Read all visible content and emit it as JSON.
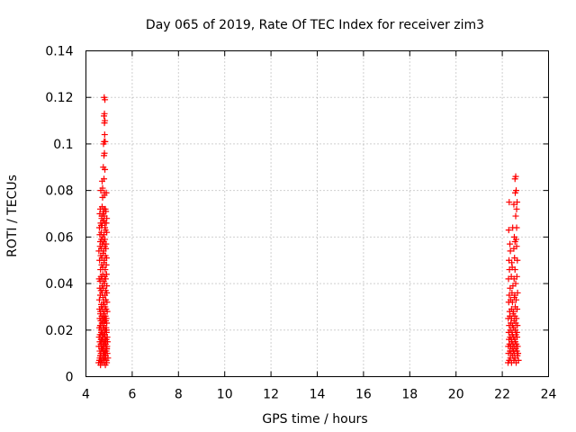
{
  "chart_data": {
    "type": "scatter",
    "title": "Day 065 of 2019, Rate Of TEC Index for receiver zim3",
    "xlabel": "GPS time / hours",
    "ylabel": "ROTI / TECUs",
    "xlim": [
      4,
      24
    ],
    "ylim": [
      0,
      0.14
    ],
    "xticks": [
      "4",
      "6",
      "8",
      "10",
      "12",
      "14",
      "16",
      "18",
      "20",
      "22",
      "24"
    ],
    "yticks": [
      "0",
      "0.02",
      "0.04",
      "0.06",
      "0.08",
      "0.1",
      "0.12",
      "0.14"
    ],
    "grid": true,
    "marker": "plus",
    "color": "#ff0000",
    "series": [
      {
        "x": [
          4.55,
          4.58,
          4.6,
          4.62,
          4.63,
          4.65,
          4.66,
          4.68,
          4.7,
          4.72,
          4.74,
          4.75,
          4.77,
          4.78,
          4.8,
          4.82,
          4.84,
          4.85,
          4.87,
          4.88,
          4.9,
          4.92,
          4.95,
          4.56,
          4.6,
          4.64,
          4.68,
          4.71,
          4.75,
          4.79,
          4.83,
          4.86,
          4.9,
          4.93,
          4.57,
          4.61,
          4.65,
          4.69,
          4.73,
          4.77,
          4.81,
          4.85,
          4.89,
          4.92,
          4.58,
          4.62,
          4.66,
          4.7,
          4.74,
          4.78,
          4.82,
          4.86,
          4.9,
          4.6,
          4.64,
          4.68,
          4.72,
          4.76,
          4.8,
          4.84,
          4.88,
          4.92,
          4.59,
          4.63,
          4.67,
          4.71,
          4.75,
          4.79,
          4.83,
          4.87,
          4.91,
          4.62,
          4.66,
          4.7,
          4.74,
          4.78,
          4.82,
          4.86,
          4.9,
          4.64,
          4.68,
          4.72,
          4.76,
          4.8,
          4.84,
          4.88,
          4.63,
          4.67,
          4.71,
          4.75,
          4.79,
          4.83,
          4.87,
          4.91,
          4.61,
          4.65,
          4.69,
          4.73,
          4.77,
          4.81,
          4.85,
          4.89,
          4.6,
          4.64,
          4.68,
          4.72,
          4.76,
          4.8,
          4.84,
          4.88,
          4.62,
          4.66,
          4.7,
          4.74,
          4.78,
          4.82,
          4.86,
          4.58,
          4.62,
          4.66,
          4.7,
          4.74,
          4.78,
          4.82,
          4.86,
          4.9,
          4.6,
          4.65,
          4.7,
          4.75,
          4.8,
          4.85,
          4.9,
          4.57,
          4.61,
          4.65,
          4.69,
          4.73,
          4.77,
          4.81,
          4.85,
          4.89,
          4.63,
          4.68,
          4.73,
          4.78,
          4.83,
          4.88,
          4.59,
          4.64,
          4.69,
          4.74,
          4.79,
          4.84,
          4.89,
          4.56,
          4.61,
          4.66,
          4.71,
          4.76,
          4.81,
          4.86,
          4.62,
          4.67,
          4.72,
          4.77,
          4.82,
          4.87,
          4.6,
          4.66,
          4.72,
          4.78,
          4.84,
          4.9,
          4.58,
          4.64,
          4.7,
          4.76,
          4.82,
          4.88,
          4.68,
          4.74,
          4.8,
          4.86,
          4.62,
          4.7,
          4.78,
          4.86,
          4.66,
          4.74,
          4.82,
          4.9,
          4.6,
          4.68,
          4.76,
          4.84,
          4.72,
          4.8,
          4.88,
          4.64,
          4.72,
          4.8,
          4.7,
          4.78,
          4.75,
          4.82,
          4.8,
          4.78,
          4.76,
          4.83,
          4.79,
          4.81,
          4.8,
          4.82,
          4.78,
          4.8,
          4.82,
          4.79,
          22.25,
          22.3,
          22.35,
          22.4,
          22.45,
          22.5,
          22.55,
          22.6,
          22.65,
          22.7,
          22.27,
          22.33,
          22.38,
          22.43,
          22.48,
          22.53,
          22.58,
          22.63,
          22.68,
          22.26,
          22.31,
          22.36,
          22.41,
          22.46,
          22.51,
          22.56,
          22.61,
          22.66,
          22.29,
          22.34,
          22.39,
          22.44,
          22.49,
          22.54,
          22.59,
          22.64,
          22.28,
          22.35,
          22.42,
          22.49,
          22.56,
          22.63,
          22.3,
          22.37,
          22.44,
          22.51,
          22.58,
          22.65,
          22.26,
          22.33,
          22.4,
          22.47,
          22.54,
          22.61,
          22.32,
          22.4,
          22.48,
          22.56,
          22.64,
          22.28,
          22.36,
          22.44,
          22.52,
          22.6,
          22.3,
          22.42,
          22.54,
          22.66,
          22.34,
          22.46,
          22.58,
          22.27,
          22.39,
          22.51,
          22.63,
          22.31,
          22.43,
          22.55,
          22.29,
          22.41,
          22.53,
          22.65,
          22.35,
          22.5,
          22.62,
          22.33,
          22.55,
          22.52,
          22.6,
          22.28,
          22.45,
          22.62,
          22.58,
          22.62,
          22.3,
          22.5,
          22.64,
          22.56,
          22.6,
          22.58,
          22.55
        ],
        "y": [
          0.006,
          0.007,
          0.008,
          0.009,
          0.005,
          0.01,
          0.007,
          0.012,
          0.006,
          0.008,
          0.011,
          0.009,
          0.007,
          0.006,
          0.01,
          0.008,
          0.005,
          0.009,
          0.012,
          0.007,
          0.006,
          0.01,
          0.008,
          0.013,
          0.011,
          0.014,
          0.016,
          0.012,
          0.015,
          0.013,
          0.011,
          0.014,
          0.012,
          0.015,
          0.017,
          0.018,
          0.016,
          0.019,
          0.017,
          0.018,
          0.02,
          0.016,
          0.019,
          0.017,
          0.021,
          0.022,
          0.02,
          0.023,
          0.021,
          0.022,
          0.024,
          0.02,
          0.023,
          0.025,
          0.024,
          0.026,
          0.025,
          0.027,
          0.024,
          0.026,
          0.025,
          0.028,
          0.029,
          0.028,
          0.03,
          0.029,
          0.031,
          0.028,
          0.03,
          0.029,
          0.032,
          0.022,
          0.019,
          0.016,
          0.013,
          0.01,
          0.018,
          0.015,
          0.012,
          0.009,
          0.014,
          0.017,
          0.011,
          0.02,
          0.008,
          0.016,
          0.006,
          0.012,
          0.019,
          0.024,
          0.015,
          0.01,
          0.021,
          0.013,
          0.018,
          0.007,
          0.023,
          0.011,
          0.026,
          0.014,
          0.009,
          0.02,
          0.015,
          0.021,
          0.012,
          0.018,
          0.008,
          0.025,
          0.016,
          0.011,
          0.027,
          0.013,
          0.019,
          0.01,
          0.022,
          0.017,
          0.024,
          0.033,
          0.035,
          0.031,
          0.036,
          0.034,
          0.032,
          0.035,
          0.033,
          0.036,
          0.038,
          0.037,
          0.039,
          0.038,
          0.04,
          0.037,
          0.039,
          0.042,
          0.041,
          0.043,
          0.042,
          0.044,
          0.041,
          0.043,
          0.042,
          0.044,
          0.046,
          0.048,
          0.047,
          0.049,
          0.046,
          0.048,
          0.05,
          0.052,
          0.051,
          0.053,
          0.05,
          0.052,
          0.051,
          0.054,
          0.056,
          0.055,
          0.057,
          0.054,
          0.056,
          0.055,
          0.058,
          0.059,
          0.057,
          0.058,
          0.059,
          0.057,
          0.061,
          0.062,
          0.06,
          0.061,
          0.063,
          0.062,
          0.064,
          0.066,
          0.065,
          0.067,
          0.064,
          0.066,
          0.068,
          0.07,
          0.069,
          0.071,
          0.072,
          0.073,
          0.072,
          0.071,
          0.065,
          0.067,
          0.066,
          0.068,
          0.07,
          0.069,
          0.071,
          0.072,
          0.077,
          0.078,
          0.079,
          0.08,
          0.081,
          0.079,
          0.084,
          0.085,
          0.09,
          0.089,
          0.096,
          0.095,
          0.1,
          0.101,
          0.101,
          0.104,
          0.109,
          0.11,
          0.112,
          0.113,
          0.119,
          0.12,
          0.006,
          0.007,
          0.008,
          0.006,
          0.009,
          0.007,
          0.008,
          0.006,
          0.009,
          0.007,
          0.01,
          0.011,
          0.01,
          0.012,
          0.011,
          0.01,
          0.012,
          0.011,
          0.01,
          0.013,
          0.014,
          0.013,
          0.015,
          0.014,
          0.013,
          0.015,
          0.014,
          0.013,
          0.016,
          0.017,
          0.016,
          0.018,
          0.017,
          0.016,
          0.018,
          0.017,
          0.019,
          0.02,
          0.019,
          0.021,
          0.02,
          0.019,
          0.022,
          0.023,
          0.022,
          0.024,
          0.023,
          0.022,
          0.025,
          0.026,
          0.025,
          0.027,
          0.026,
          0.025,
          0.028,
          0.029,
          0.028,
          0.03,
          0.029,
          0.032,
          0.033,
          0.032,
          0.034,
          0.033,
          0.035,
          0.036,
          0.035,
          0.036,
          0.038,
          0.039,
          0.04,
          0.042,
          0.043,
          0.042,
          0.043,
          0.046,
          0.047,
          0.046,
          0.05,
          0.049,
          0.051,
          0.05,
          0.054,
          0.055,
          0.056,
          0.057,
          0.058,
          0.06,
          0.059,
          0.063,
          0.064,
          0.064,
          0.069,
          0.072,
          0.075,
          0.074,
          0.075,
          0.079,
          0.08,
          0.086,
          0.085
        ]
      }
    ]
  }
}
